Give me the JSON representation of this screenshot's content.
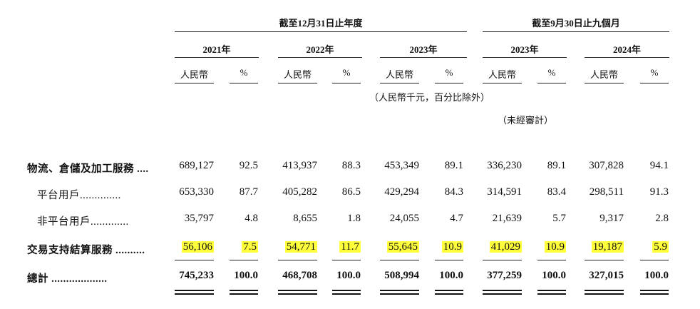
{
  "header": {
    "period_a": "截至12月31日止年度",
    "period_b": "截至9月30日止九個月",
    "years": [
      "2021年",
      "2022年",
      "2023年",
      "2023年",
      "2024年"
    ],
    "currency_label": "人民幣",
    "percent_label": "%",
    "unit_note": "（人民幣千元，百分比除外）",
    "unaudited_note": "（未經審計）"
  },
  "rows": [
    {
      "label": "物流、倉儲及加工服務 ....",
      "values": [
        "689,127",
        "92.5",
        "413,937",
        "88.3",
        "453,349",
        "89.1",
        "336,230",
        "89.1",
        "307,828",
        "94.1"
      ]
    },
    {
      "label": "平台用戶..............",
      "values": [
        "653,330",
        "87.7",
        "405,282",
        "86.5",
        "429,294",
        "84.3",
        "314,591",
        "83.4",
        "298,511",
        "91.3"
      ]
    },
    {
      "label": "非平台用戶.............",
      "values": [
        "35,797",
        "4.8",
        "8,655",
        "1.8",
        "24,055",
        "4.7",
        "21,639",
        "5.7",
        "9,317",
        "2.8"
      ]
    },
    {
      "label": "交易支持結算服務 ..........",
      "values": [
        "56,106",
        "7.5",
        "54,771",
        "11.7",
        "55,645",
        "10.9",
        "41,029",
        "10.9",
        "19,187",
        "5.9"
      ]
    },
    {
      "label": "總計 ...................",
      "values": [
        "745,233",
        "100.0",
        "468,708",
        "100.0",
        "508,994",
        "100.0",
        "377,259",
        "100.0",
        "327,015",
        "100.0"
      ]
    }
  ],
  "colors": {
    "highlight": "#ffff3c"
  }
}
